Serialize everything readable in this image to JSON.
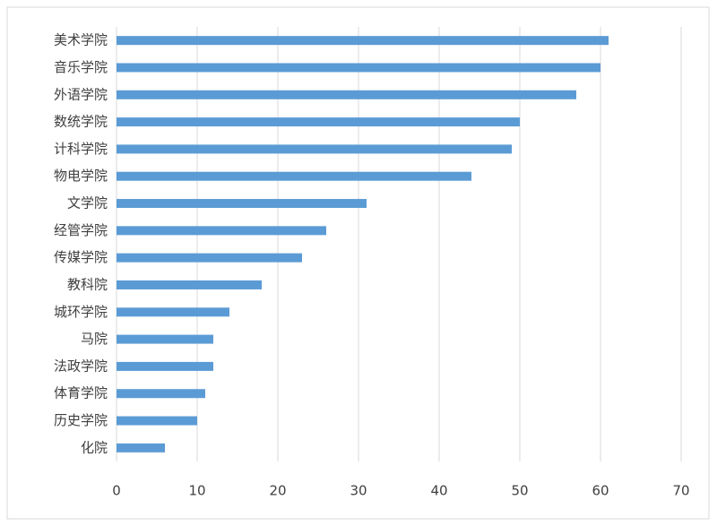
{
  "chart_data": {
    "type": "bar",
    "orientation": "horizontal",
    "categories": [
      "美术学院",
      "音乐学院",
      "外语学院",
      "数统学院",
      "计科学院",
      "物电学院",
      "文学院",
      "经管学院",
      "传媒学院",
      "教科院",
      "城环学院",
      "马院",
      "法政学院",
      "体育学院",
      "历史学院",
      "化院"
    ],
    "values": [
      61,
      60,
      57,
      50,
      49,
      44,
      31,
      26,
      23,
      18,
      14,
      12,
      12,
      11,
      10,
      6
    ],
    "color": "#5b9bd5",
    "xlim": [
      0,
      70
    ],
    "xticks": [
      0,
      10,
      20,
      30,
      40,
      50,
      60,
      70
    ],
    "grid": true
  }
}
